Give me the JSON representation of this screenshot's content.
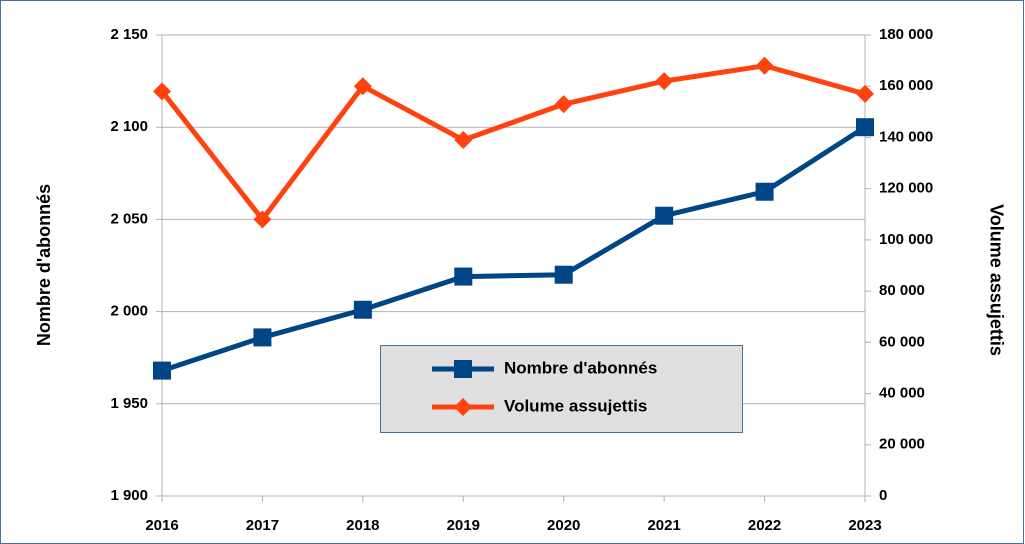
{
  "chart_data": {
    "type": "line",
    "categories": [
      "2016",
      "2017",
      "2018",
      "2019",
      "2020",
      "2021",
      "2022",
      "2023"
    ],
    "series": [
      {
        "name": "Nombre d'abonnés",
        "color": "#004586",
        "marker": "square",
        "values": [
          1968,
          1986,
          2001,
          2019,
          2020,
          2052,
          2065,
          2100
        ]
      },
      {
        "name": "Volume assujettis",
        "color": "#ff420e",
        "marker": "diamond",
        "axis": "y2",
        "values": [
          158000,
          108000,
          160000,
          139000,
          153000,
          162000,
          168000,
          157000
        ]
      }
    ],
    "ylabel": "Nombre d'abonnés",
    "y2label": "Volume assujettis",
    "ylim": [
      1900,
      2150
    ],
    "yticks": [
      {
        "value": 1900,
        "label": "1 900"
      },
      {
        "value": 1950,
        "label": "1 950"
      },
      {
        "value": 2000,
        "label": "2 000"
      },
      {
        "value": 2050,
        "label": "2 050"
      },
      {
        "value": 2100,
        "label": "2 100"
      },
      {
        "value": 2150,
        "label": "2 150"
      }
    ],
    "y2lim": [
      0,
      180000
    ],
    "y2ticks": [
      0,
      {
        "value": 20000,
        "label": "20 000"
      },
      {
        "value": 40000,
        "label": "40 000"
      },
      {
        "value": 60000,
        "label": "60 000"
      },
      {
        "value": 80000,
        "label": "80 000"
      },
      {
        "value": 100000,
        "label": "100 000"
      },
      {
        "value": 120000,
        "label": "120 000"
      },
      {
        "value": 140000,
        "label": "140 000"
      },
      {
        "value": 160000,
        "label": "160 000"
      },
      {
        "value": 180000,
        "label": "180 000"
      }
    ],
    "grid": true,
    "legend": "center"
  }
}
